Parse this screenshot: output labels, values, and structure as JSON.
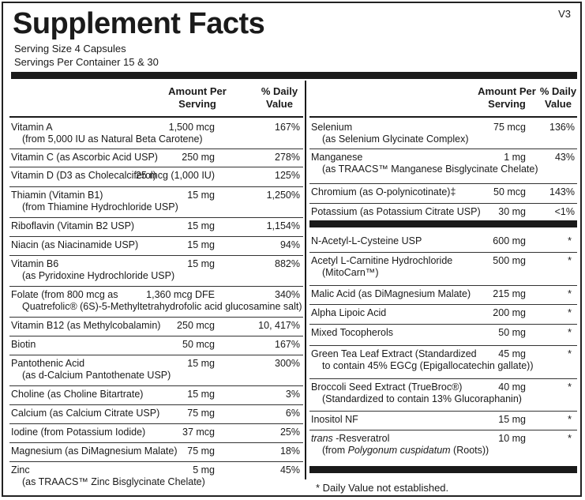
{
  "title": "Supplement Facts",
  "version": "V3",
  "serving_size": "Serving Size  4 Capsules",
  "servings_per_container": "Servings Per Container  15 & 30",
  "headers": {
    "amount_line1": "Amount Per",
    "amount_line2": "Serving",
    "dv_line1": "% Daily",
    "dv_line2": "Value"
  },
  "left_rows": [
    {
      "name": "Vitamin A",
      "sub": "(from 5,000 IU as Natural Beta Carotene)",
      "amount": "1,500 mcg",
      "dv": "167%"
    },
    {
      "name": "Vitamin C (as Ascorbic Acid USP)",
      "sub": "",
      "amount": "250 mg",
      "dv": "278%"
    },
    {
      "name": "Vitamin D (D3 as Cholecalciferol)",
      "sub": "",
      "amount": "25 mcg (1,000 IU)",
      "dv": "125%"
    },
    {
      "name": "Thiamin (Vitamin B1)",
      "sub": "(from Thiamine Hydrochloride USP)",
      "amount": "15 mg",
      "dv": "1,250%"
    },
    {
      "name": "Riboflavin (Vitamin B2 USP)",
      "sub": "",
      "amount": "15 mg",
      "dv": "1,154%"
    },
    {
      "name": "Niacin (as Niacinamide USP)",
      "sub": "",
      "amount": "15 mg",
      "dv": "94%"
    },
    {
      "name": "Vitamin B6",
      "sub": "(as Pyridoxine Hydrochloride USP)",
      "amount": "15 mg",
      "dv": "882%"
    },
    {
      "name": "Folate (from 800 mcg as",
      "sub": "Quatrefolic® (6S)-5-Methyltetrahydrofolic acid glucosamine salt)",
      "amount": "1,360 mcg DFE",
      "dv": "340%"
    },
    {
      "name": "Vitamin B12 (as Methylcobalamin)",
      "sub": "",
      "amount": "250 mcg",
      "dv": "10, 417%"
    },
    {
      "name": "Biotin",
      "sub": "",
      "amount": "50 mcg",
      "dv": "167%"
    },
    {
      "name": "Pantothenic Acid",
      "sub": "(as d-Calcium Pantothenate USP)",
      "amount": "15 mg",
      "dv": "300%"
    },
    {
      "name": "Choline (as Choline Bitartrate)",
      "sub": "",
      "amount": "15 mg",
      "dv": "3%"
    },
    {
      "name": "Calcium (as Calcium Citrate USP)",
      "sub": "",
      "amount": "75 mg",
      "dv": "6%"
    },
    {
      "name": "Iodine (from Potassium Iodide)",
      "sub": "",
      "amount": "37 mcg",
      "dv": "25%"
    },
    {
      "name": "Magnesium (as DiMagnesium Malate)",
      "sub": "",
      "amount": "75 mg",
      "dv": "18%"
    },
    {
      "name": "Zinc",
      "sub": "(as TRAACS™ Zinc Bisglycinate Chelate)",
      "amount": "5 mg",
      "dv": "45%"
    }
  ],
  "right_rows_top": [
    {
      "name": "Selenium",
      "sub": "(as Selenium Glycinate Complex)",
      "amount": "75 mcg",
      "dv": "136%"
    },
    {
      "name": "Manganese",
      "sub": "(as TRAACS™ Manganese Bisglycinate Chelate)",
      "amount": "1 mg",
      "dv": "43%"
    },
    {
      "name": "Chromium (as O-polynicotinate)‡",
      "sub": "",
      "amount": "50 mcg",
      "dv": "143%"
    },
    {
      "name": "Potassium (as Potassium Citrate USP)",
      "sub": "",
      "amount": "30 mg",
      "dv": "<1%"
    }
  ],
  "right_rows_bottom": [
    {
      "name": "N-Acetyl-L-Cysteine USP",
      "sub": "",
      "amount": "600 mg",
      "dv": "*"
    },
    {
      "name": "Acetyl L-Carnitine Hydrochloride",
      "sub": "(MitoCarn™)",
      "amount": "500 mg",
      "dv": "*"
    },
    {
      "name": "Malic Acid (as DiMagnesium Malate)",
      "sub": "",
      "amount": "215 mg",
      "dv": "*"
    },
    {
      "name": "Alpha Lipoic Acid",
      "sub": "",
      "amount": "200 mg",
      "dv": "*"
    },
    {
      "name": "Mixed Tocopherols",
      "sub": "",
      "amount": "50 mg",
      "dv": "*"
    },
    {
      "name": "Green Tea Leaf Extract (Standardized",
      "sub": "to contain 45% EGCg (Epigallocatechin gallate))",
      "amount": "45 mg",
      "dv": "*"
    },
    {
      "name": "Broccoli Seed Extract (TrueBroc®)",
      "sub": "(Standardized to contain 13% Glucoraphanin)",
      "amount": "40 mg",
      "dv": "*"
    },
    {
      "name": "Inositol NF",
      "sub": "",
      "amount": "15 mg",
      "dv": "*"
    },
    {
      "name": "trans -Resveratrol",
      "sub": "(from Polygonum cuspidatum (Roots))",
      "amount": "10 mg",
      "dv": "*"
    }
  ],
  "footnote": "*  Daily Value not established."
}
